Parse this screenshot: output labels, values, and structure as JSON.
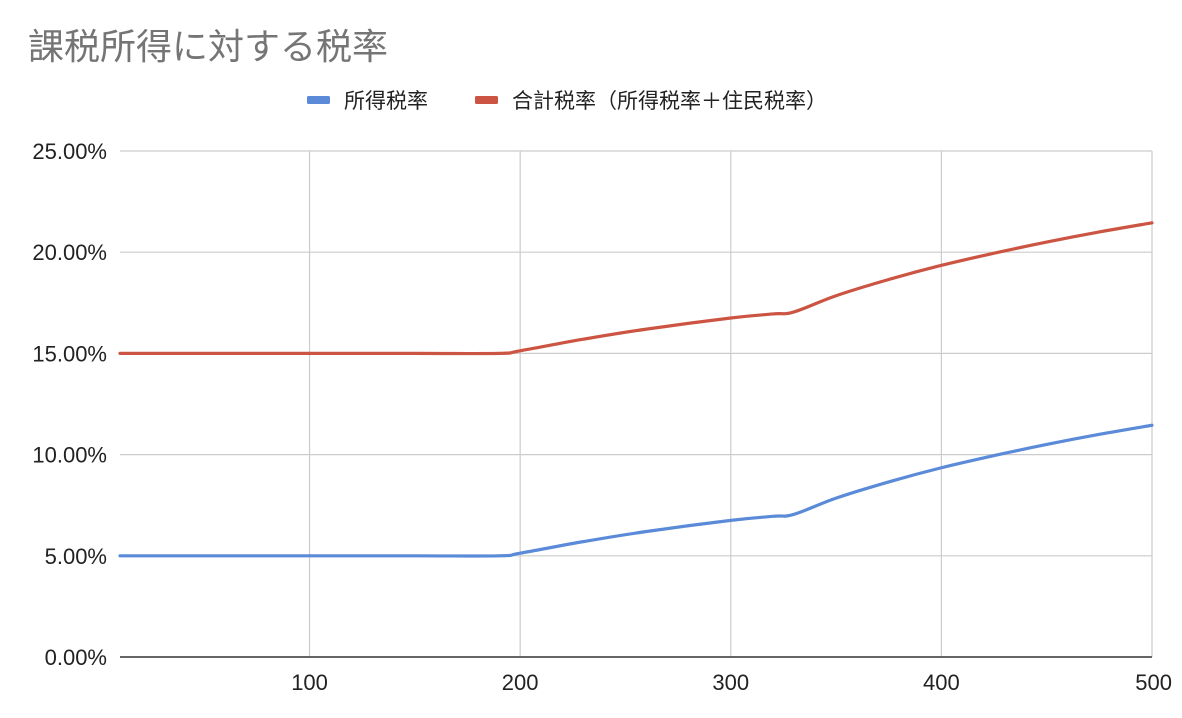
{
  "chart_data": {
    "type": "line",
    "title": "課税所得に対する税率",
    "xlabel": "",
    "ylabel": "",
    "xlim": [
      10,
      500
    ],
    "ylim": [
      0,
      25
    ],
    "x_ticks": [
      100,
      200,
      300,
      400,
      500
    ],
    "y_ticks": [
      0,
      5,
      10,
      15,
      20,
      25
    ],
    "y_tick_labels": [
      "0.00%",
      "5.00%",
      "10.00%",
      "15.00%",
      "20.00%",
      "25.00%"
    ],
    "grid": true,
    "legend_position": "top",
    "x": [
      10,
      50,
      100,
      150,
      190,
      200,
      230,
      260,
      300,
      320,
      330,
      350,
      375,
      400,
      425,
      450,
      475,
      500
    ],
    "series": [
      {
        "name": "所得税率",
        "color": "#5b8bd8",
        "values": [
          5.0,
          5.0,
          5.0,
          5.0,
          5.0,
          5.13,
          5.7,
          6.2,
          6.75,
          6.95,
          7.05,
          7.85,
          8.65,
          9.35,
          9.95,
          10.5,
          11.0,
          11.45
        ]
      },
      {
        "name": "合計税率（所得税率＋住民税率）",
        "color": "#cc5442",
        "values": [
          15.0,
          15.0,
          15.0,
          15.0,
          15.0,
          15.13,
          15.7,
          16.2,
          16.75,
          16.95,
          17.05,
          17.85,
          18.65,
          19.35,
          19.95,
          20.5,
          21.0,
          21.45
        ]
      }
    ]
  }
}
